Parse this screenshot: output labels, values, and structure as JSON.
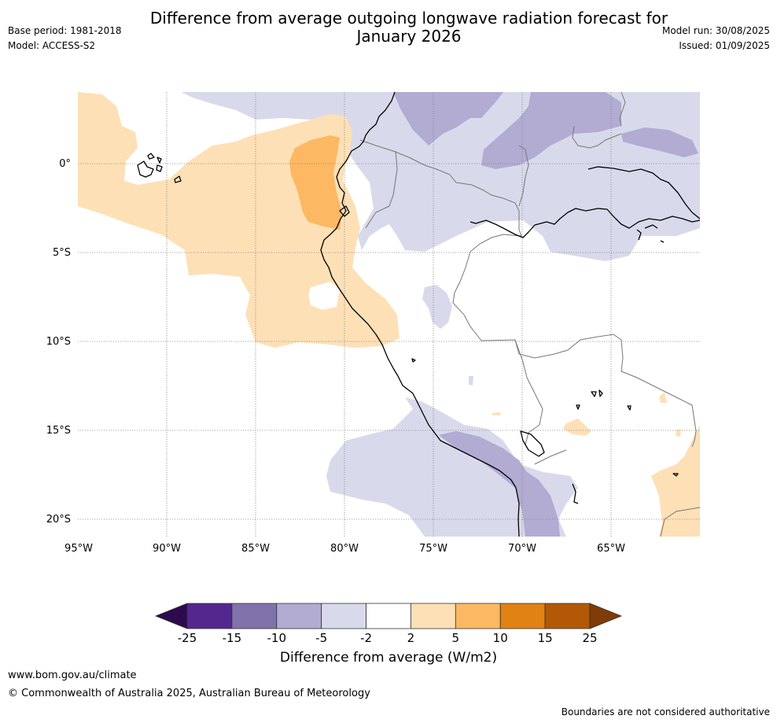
{
  "title": "Difference from average outgoing longwave radiation forecast for January 2026",
  "title_line1": "Difference from average outgoing longwave radiation forecast for",
  "title_line2": "January 2026",
  "base_period": "Base period: 1981-2018",
  "model": "Model: ACCESS-S2",
  "model_run": "Model run: 30/08/2025",
  "issued": "Issued: 01/09/2025",
  "lat_labels": [
    "0°",
    "5°S",
    "10°S",
    "15°S",
    "20°S"
  ],
  "lon_labels": [
    "95°W",
    "90°W",
    "85°W",
    "80°W",
    "75°W",
    "70°W",
    "65°W"
  ],
  "colorbar": {
    "label": "Difference from average (W/m2)",
    "ticks": [
      "-25",
      "-15",
      "-10",
      "-5",
      "-2",
      "2",
      "5",
      "10",
      "15",
      "25"
    ],
    "colors": [
      "#2d0a4e",
      "#54278f",
      "#8073ac",
      "#b2abd2",
      "#d8daeb",
      "#ffffff",
      "#fee0b6",
      "#fdb863",
      "#e08214",
      "#b35806",
      "#7f3b08"
    ]
  },
  "footer": {
    "url": "www.bom.gov.au/climate",
    "copyright": "© Commonwealth of Australia 2025, Australian Bureau of Meteorology",
    "note": "Boundaries are not considered authoritative"
  }
}
